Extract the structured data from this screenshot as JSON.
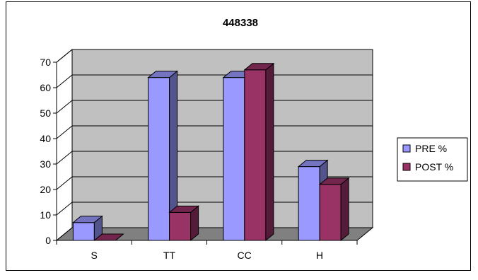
{
  "chart_data": {
    "type": "bar",
    "title": "448338",
    "xlabel": "",
    "ylabel": "",
    "categories": [
      "S",
      "TT",
      "CC",
      "H"
    ],
    "series": [
      {
        "name": "PRE %",
        "values": [
          7,
          64,
          64,
          29
        ],
        "color": "#9999ff"
      },
      {
        "name": "POST %",
        "values": [
          0,
          11,
          67,
          22
        ],
        "color": "#993366"
      }
    ],
    "ylim": [
      0,
      70
    ],
    "yticks": [
      0,
      10,
      20,
      30,
      40,
      50,
      60,
      70
    ],
    "grid": true,
    "legend": "right",
    "style": "3d-clustered-column",
    "colors": {
      "wall": "#c0c0c0",
      "floor": "#808080",
      "gridline": "#000000"
    }
  }
}
